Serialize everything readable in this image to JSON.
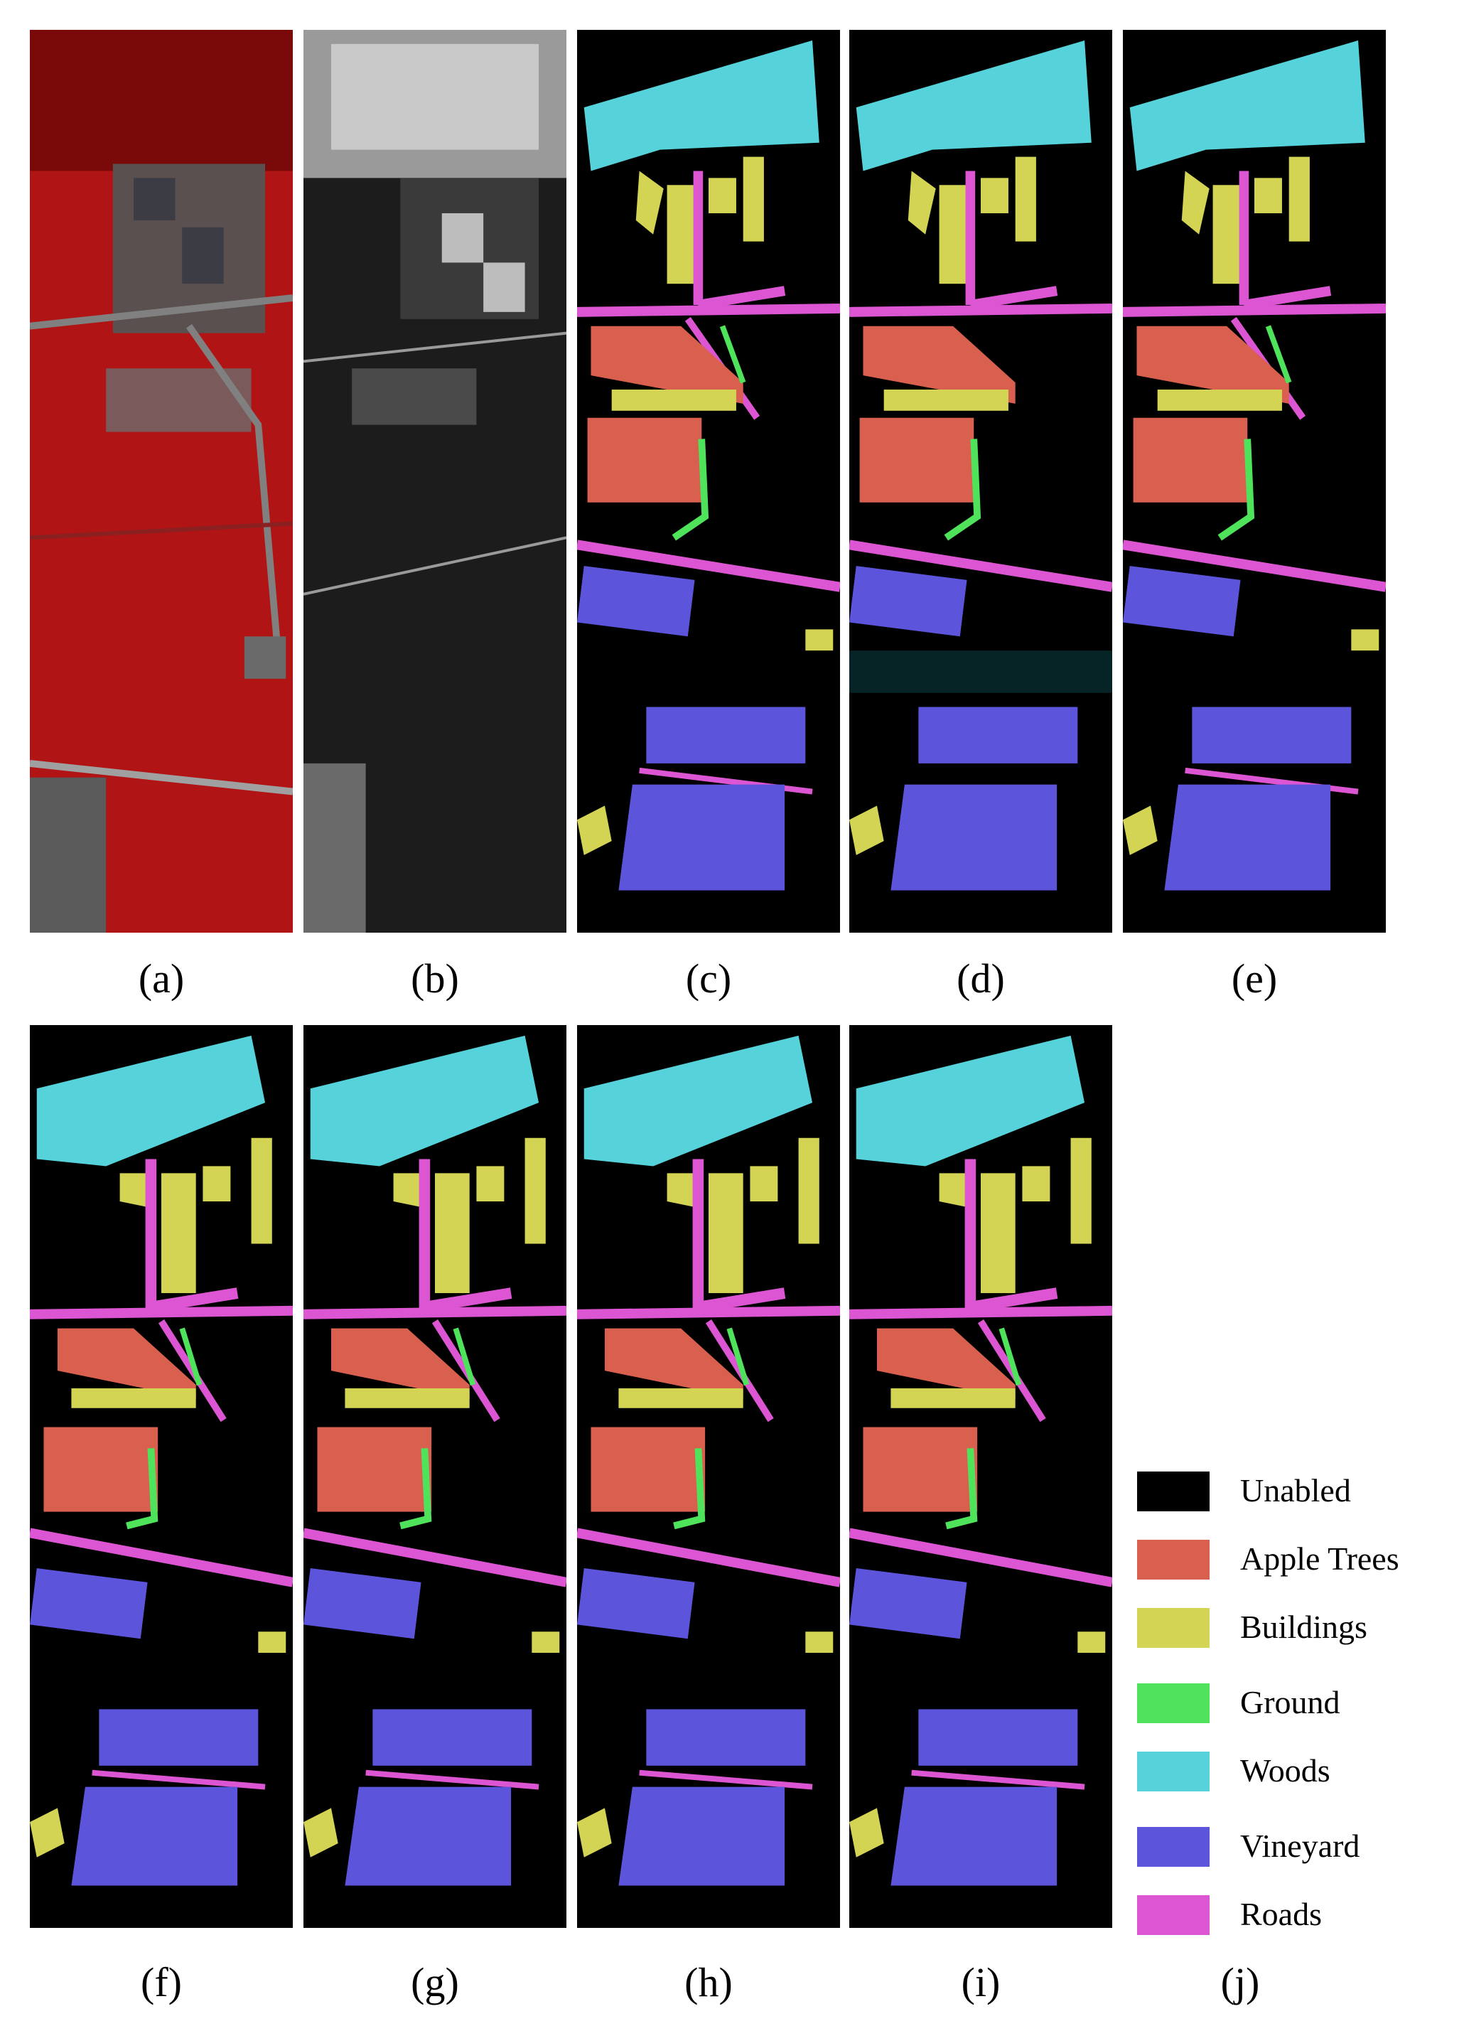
{
  "panels": [
    {
      "id": "a",
      "caption": "(a)",
      "kind": "false-color"
    },
    {
      "id": "b",
      "caption": "(b)",
      "kind": "lidar"
    },
    {
      "id": "c",
      "caption": "(c)",
      "kind": "ground-truth"
    },
    {
      "id": "d",
      "caption": "(d)",
      "kind": "noisy-map"
    },
    {
      "id": "e",
      "caption": "(e)",
      "kind": "noisy-map"
    },
    {
      "id": "f",
      "caption": "(f)",
      "kind": "smooth-map"
    },
    {
      "id": "g",
      "caption": "(g)",
      "kind": "smooth-map"
    },
    {
      "id": "h",
      "caption": "(h)",
      "kind": "smooth-map"
    },
    {
      "id": "i",
      "caption": "(i)",
      "kind": "smooth-map"
    }
  ],
  "legend_caption": "(j)",
  "legend": [
    {
      "label": "Unabled",
      "color": "#000000"
    },
    {
      "label": "Apple Trees",
      "color": "#d9604f"
    },
    {
      "label": "Buildings",
      "color": "#d4d454"
    },
    {
      "label": "Ground",
      "color": "#4ee35a"
    },
    {
      "label": "Woods",
      "color": "#55d2da"
    },
    {
      "label": "Vineyard",
      "color": "#5c55db"
    },
    {
      "label": "Roads",
      "color": "#dc55d2"
    }
  ]
}
